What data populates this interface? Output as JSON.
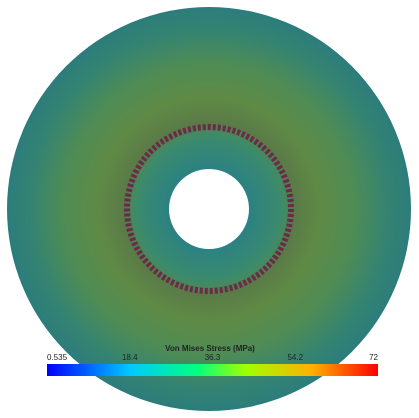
{
  "colorbar": {
    "title": "Von Mises Stress (MPa)",
    "tick_labels": [
      "0.535",
      "18.4",
      "36.3",
      "54.2",
      "72"
    ]
  }
}
